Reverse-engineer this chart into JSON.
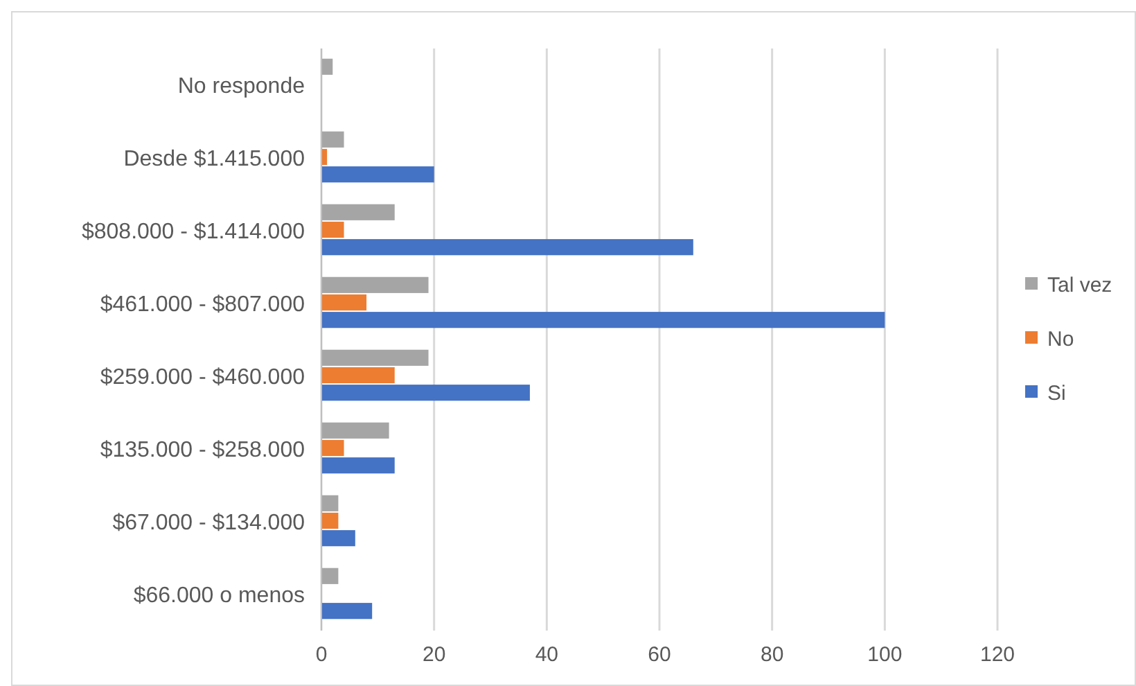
{
  "chart_data": {
    "type": "bar",
    "orientation": "horizontal",
    "categories": [
      "No responde",
      "Desde $1.415.000",
      "$808.000 - $1.414.000",
      "$461.000 - $807.000",
      "$259.000 - $460.000",
      "$135.000 - $258.000",
      "$67.000 - $134.000",
      "$66.000 o menos"
    ],
    "series": [
      {
        "name": "Si",
        "color": "#4472c4",
        "values": [
          0,
          20,
          66,
          100,
          37,
          13,
          6,
          9
        ]
      },
      {
        "name": "No",
        "color": "#ed7d31",
        "values": [
          0,
          1,
          4,
          8,
          13,
          4,
          3,
          0
        ]
      },
      {
        "name": "Tal vez",
        "color": "#a5a5a5",
        "values": [
          2,
          4,
          13,
          19,
          19,
          12,
          3,
          3
        ]
      }
    ],
    "xlim": [
      0,
      120
    ],
    "xticks": [
      0,
      20,
      40,
      60,
      80,
      100,
      120
    ],
    "grid": "x",
    "legend": "right"
  }
}
